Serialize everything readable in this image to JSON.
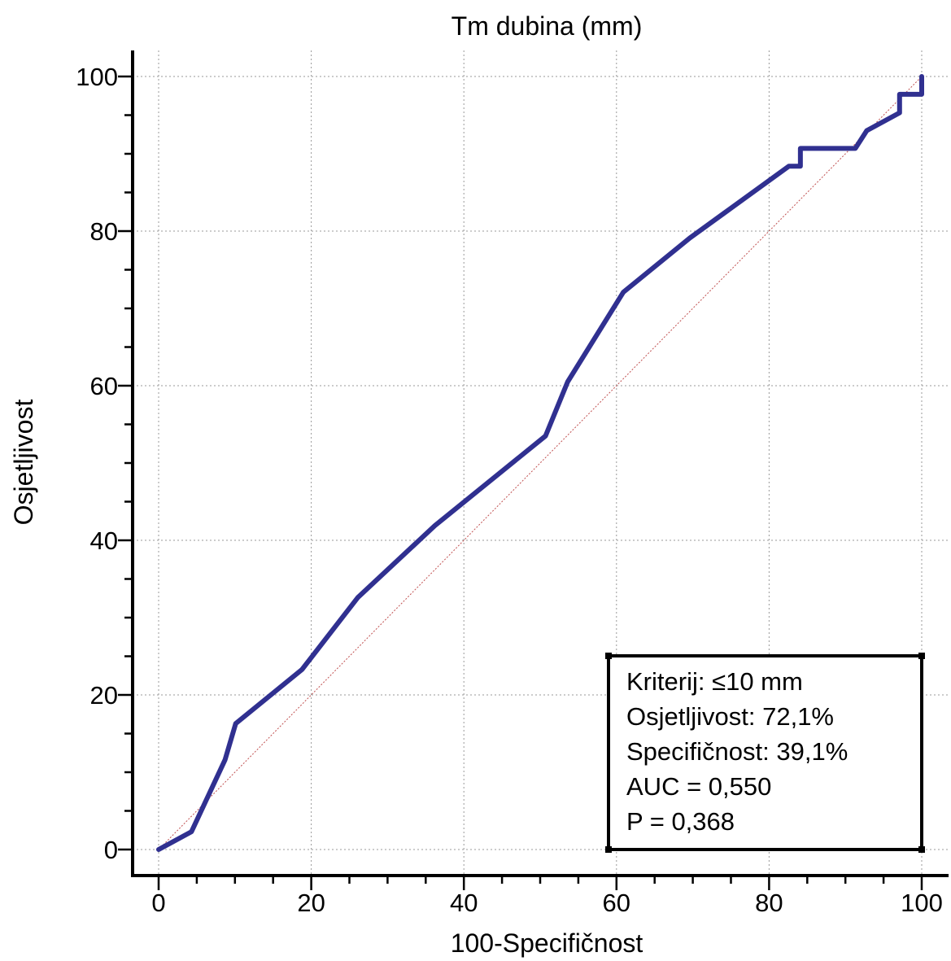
{
  "chart_data": {
    "type": "line",
    "title": "Tm dubina (mm)",
    "xlabel": "100-Specifičnost",
    "ylabel": "Osjetljivost",
    "xlim": [
      0,
      100
    ],
    "ylim": [
      0,
      100
    ],
    "x_ticks": [
      0,
      20,
      40,
      60,
      80,
      100
    ],
    "y_ticks": [
      0,
      20,
      40,
      60,
      80,
      100
    ],
    "grid": true,
    "series": [
      {
        "color": "#303090",
        "x": [
          0,
          4.3,
          4.3,
          8.7,
          10.1,
          10.1,
          18.8,
          26.1,
          36.2,
          50.7,
          53.6,
          60.9,
          69.6,
          82.6,
          84.1,
          84.1,
          91.3,
          92.8,
          97.1,
          97.1,
          100,
          100
        ],
        "y": [
          0,
          2.3,
          2.3,
          11.6,
          16.3,
          16.3,
          23.3,
          32.6,
          41.9,
          53.5,
          60.5,
          72.1,
          79.1,
          88.4,
          88.4,
          90.7,
          90.7,
          93.0,
          95.3,
          97.7,
          97.7,
          100
        ]
      },
      {
        "color": "#c05050",
        "style": "dotted",
        "x": [
          0,
          100
        ],
        "y": [
          0,
          100
        ]
      }
    ],
    "info_box": {
      "lines": [
        "Kriterij: ≤10 mm",
        "Osjetljivost: 72,1%",
        "Specifičnost: 39,1%",
        "AUC = 0,550",
        "P = 0,368"
      ]
    }
  }
}
